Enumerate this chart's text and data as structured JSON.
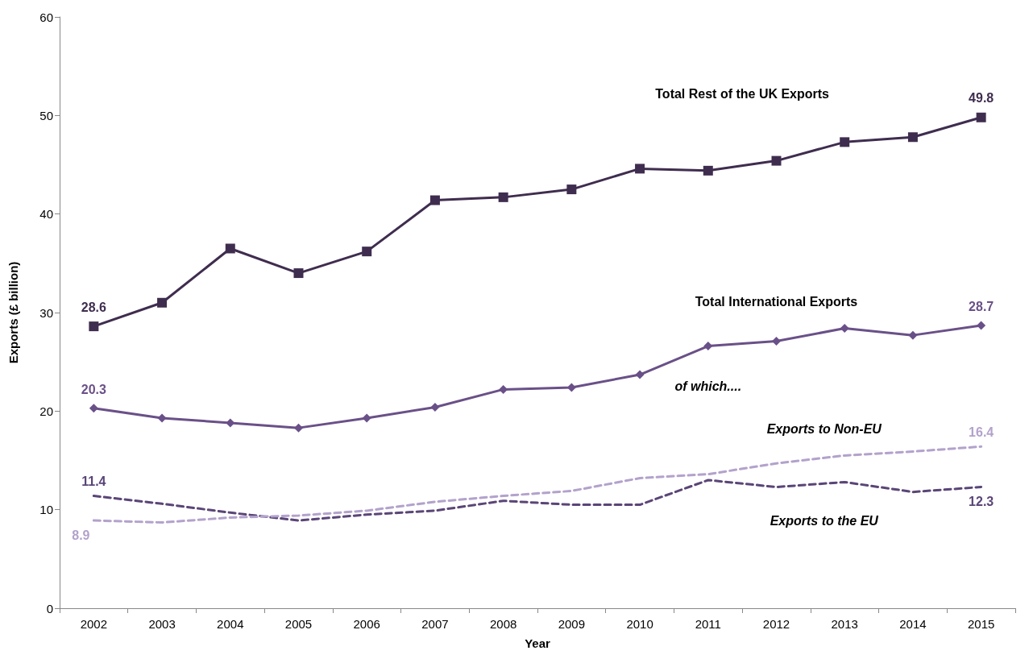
{
  "chart_data": {
    "type": "line",
    "xlabel": "Year",
    "ylabel": "Exports (£ billion)",
    "categories": [
      "2002",
      "2003",
      "2004",
      "2005",
      "2006",
      "2007",
      "2008",
      "2009",
      "2010",
      "2011",
      "2012",
      "2013",
      "2014",
      "2015"
    ],
    "series": [
      {
        "name": "Total Rest of the UK Exports",
        "color": "#3f2d4f",
        "marker": "square",
        "line_style": "solid",
        "values": [
          28.6,
          31.0,
          36.5,
          34.0,
          36.2,
          41.4,
          41.7,
          42.5,
          44.6,
          44.4,
          45.4,
          47.3,
          47.8,
          49.8
        ],
        "value_labels": [
          "28.6",
          null,
          null,
          null,
          null,
          null,
          null,
          null,
          null,
          null,
          null,
          null,
          null,
          "49.8"
        ]
      },
      {
        "name": "Total International Exports",
        "color": "#6a5088",
        "marker": "diamond",
        "line_style": "solid",
        "values": [
          20.3,
          19.3,
          18.8,
          18.3,
          19.3,
          20.4,
          22.2,
          22.4,
          23.7,
          26.6,
          27.1,
          28.4,
          27.7,
          28.7
        ],
        "value_labels": [
          "20.3",
          null,
          null,
          null,
          null,
          null,
          null,
          null,
          null,
          null,
          null,
          null,
          null,
          "28.7"
        ]
      },
      {
        "name": "Exports to Non-EU",
        "color": "#b3a2cc",
        "marker": "none",
        "line_style": "dashed",
        "values": [
          8.9,
          8.7,
          9.2,
          9.4,
          9.9,
          10.8,
          11.4,
          11.9,
          13.2,
          13.6,
          14.7,
          15.5,
          15.9,
          16.4
        ],
        "value_labels": [
          "8.9",
          null,
          null,
          null,
          null,
          null,
          null,
          null,
          null,
          null,
          null,
          null,
          null,
          "16.4"
        ]
      },
      {
        "name": "Exports to the EU",
        "color": "#5a4577",
        "marker": "none",
        "line_style": "dashed",
        "values": [
          11.4,
          10.6,
          9.7,
          8.9,
          9.5,
          9.9,
          10.9,
          10.5,
          10.5,
          13.0,
          12.3,
          12.8,
          11.8,
          12.3
        ],
        "value_labels": [
          "11.4",
          null,
          null,
          null,
          null,
          null,
          null,
          null,
          null,
          null,
          null,
          null,
          null,
          "12.3"
        ]
      }
    ],
    "annotations": [
      "of which...."
    ],
    "ylim": [
      0,
      60
    ],
    "yticks": [
      0,
      10,
      20,
      30,
      40,
      50,
      60
    ],
    "grid": false,
    "legend": false
  }
}
